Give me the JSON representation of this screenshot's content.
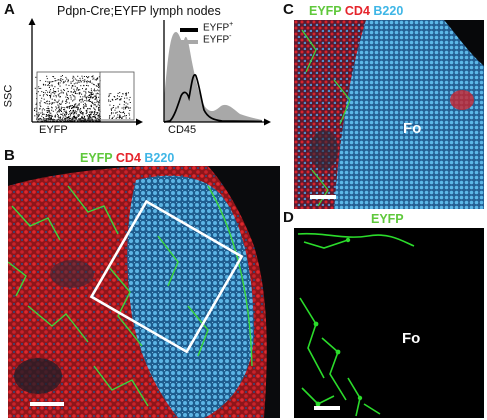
{
  "panels": {
    "A": {
      "letter": "A",
      "title": "Pdpn-Cre;EYFP lymph nodes",
      "scatter": {
        "ylabel": "SSC",
        "xlabel": "EYFP"
      },
      "histogram": {
        "xlabel": "CD45",
        "legend": [
          {
            "label": "EYFP",
            "sup": "+",
            "color": "#000000"
          },
          {
            "label": "EYFP",
            "sup": "-",
            "color": "#a8a8a8"
          }
        ]
      }
    },
    "B": {
      "letter": "B",
      "stains": [
        {
          "text": "EYFP",
          "color": "#5fc83b"
        },
        {
          "text": "CD4",
          "color": "#e5242b"
        },
        {
          "text": "B220",
          "color": "#3fb6e6"
        }
      ]
    },
    "C": {
      "letter": "C",
      "stains": [
        {
          "text": "EYFP",
          "color": "#5fc83b"
        },
        {
          "text": "CD4",
          "color": "#e5242b"
        },
        {
          "text": "B220",
          "color": "#3fb6e6"
        }
      ],
      "label": "Fo"
    },
    "D": {
      "letter": "D",
      "stains": [
        {
          "text": "EYFP",
          "color": "#5fc83b"
        }
      ],
      "label": "Fo"
    }
  }
}
